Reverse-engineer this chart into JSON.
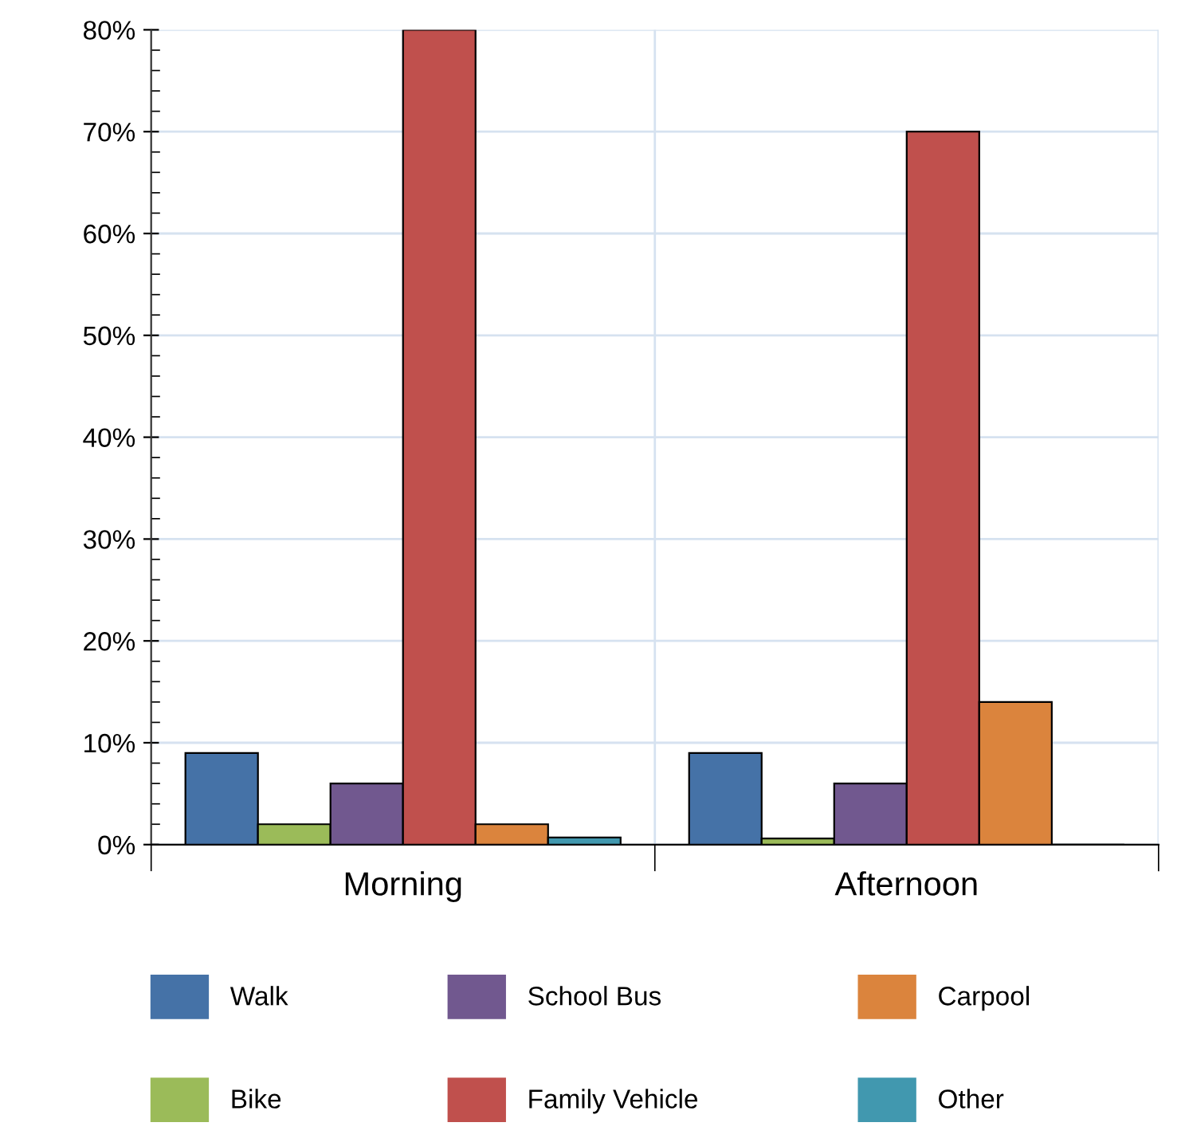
{
  "chart_data": {
    "type": "bar",
    "categories": [
      "Morning",
      "Afternoon"
    ],
    "series": [
      {
        "name": "Walk",
        "color": "#4572a7",
        "values": [
          9,
          9
        ]
      },
      {
        "name": "Bike",
        "color": "#9bbb59",
        "values": [
          2,
          0.6
        ]
      },
      {
        "name": "School Bus",
        "color": "#71588f",
        "values": [
          6,
          6
        ]
      },
      {
        "name": "Family Vehicle",
        "color": "#c0504d",
        "values": [
          80,
          70
        ]
      },
      {
        "name": "Carpool",
        "color": "#db843d",
        "values": [
          2,
          14
        ]
      },
      {
        "name": "Other",
        "color": "#4198af",
        "values": [
          0.7,
          0
        ]
      }
    ],
    "ylim": [
      0,
      80
    ],
    "yticks": [
      {
        "value": 0,
        "label": "0%"
      },
      {
        "value": 10,
        "label": "10%"
      },
      {
        "value": 20,
        "label": "20%"
      },
      {
        "value": 30,
        "label": "30%"
      },
      {
        "value": 40,
        "label": "40%"
      },
      {
        "value": 50,
        "label": "50%"
      },
      {
        "value": 60,
        "label": "60%"
      },
      {
        "value": 70,
        "label": "70%"
      },
      {
        "value": 80,
        "label": "80%"
      }
    ],
    "grid": true,
    "legend": "bottom"
  }
}
